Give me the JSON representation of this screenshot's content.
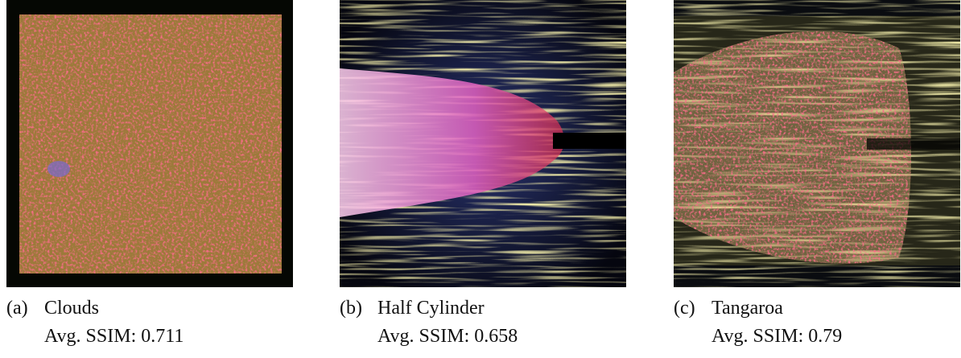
{
  "panels": [
    {
      "label": "(a)",
      "name": "Clouds",
      "metric": "Avg. SSIM: 0.711"
    },
    {
      "label": "(b)",
      "name": "Half Cylinder",
      "metric": "Avg. SSIM: 0.658"
    },
    {
      "label": "(c)",
      "name": "Tangaroa",
      "metric": "Avg. SSIM: 0.79"
    }
  ]
}
